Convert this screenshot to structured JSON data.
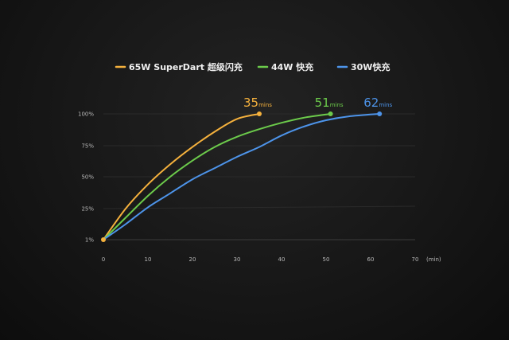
{
  "chart_data": {
    "type": "line",
    "xlim": [
      0,
      70
    ],
    "x_ticks": [
      0,
      10,
      20,
      30,
      40,
      50,
      60,
      70
    ],
    "x_unit": "(min)",
    "y_ticks": [
      {
        "value": 1,
        "label": "1%"
      },
      {
        "value": 25,
        "label": "25%"
      },
      {
        "value": 50,
        "label": "50%"
      },
      {
        "value": 75,
        "label": "75%"
      },
      {
        "value": 100,
        "label": "100%"
      }
    ],
    "legend_position": "top-center",
    "grid": "horizontal",
    "series": [
      {
        "name": "65W SuperDart 超级闪充",
        "color": "#f5b13d",
        "end_value": "35",
        "end_unit": "mins",
        "points": [
          [
            0,
            1
          ],
          [
            5,
            25
          ],
          [
            10,
            44
          ],
          [
            15,
            60
          ],
          [
            20,
            74
          ],
          [
            25,
            86
          ],
          [
            30,
            96
          ],
          [
            35,
            100
          ]
        ]
      },
      {
        "name": "44W 快充",
        "color": "#6ccb4b",
        "end_value": "51",
        "end_unit": "mins",
        "points": [
          [
            0,
            1
          ],
          [
            5,
            18
          ],
          [
            10,
            35
          ],
          [
            15,
            50
          ],
          [
            20,
            63
          ],
          [
            25,
            74
          ],
          [
            30,
            82
          ],
          [
            35,
            88
          ],
          [
            40,
            93
          ],
          [
            45,
            97
          ],
          [
            51,
            100
          ]
        ]
      },
      {
        "name": "30W快充",
        "color": "#4d94ea",
        "end_value": "62",
        "end_unit": "mins",
        "points": [
          [
            0,
            1
          ],
          [
            5,
            13
          ],
          [
            10,
            26
          ],
          [
            15,
            37
          ],
          [
            20,
            48
          ],
          [
            25,
            57
          ],
          [
            30,
            66
          ],
          [
            35,
            74
          ],
          [
            40,
            83
          ],
          [
            45,
            90
          ],
          [
            50,
            95
          ],
          [
            55,
            98
          ],
          [
            62,
            100
          ]
        ]
      }
    ]
  }
}
